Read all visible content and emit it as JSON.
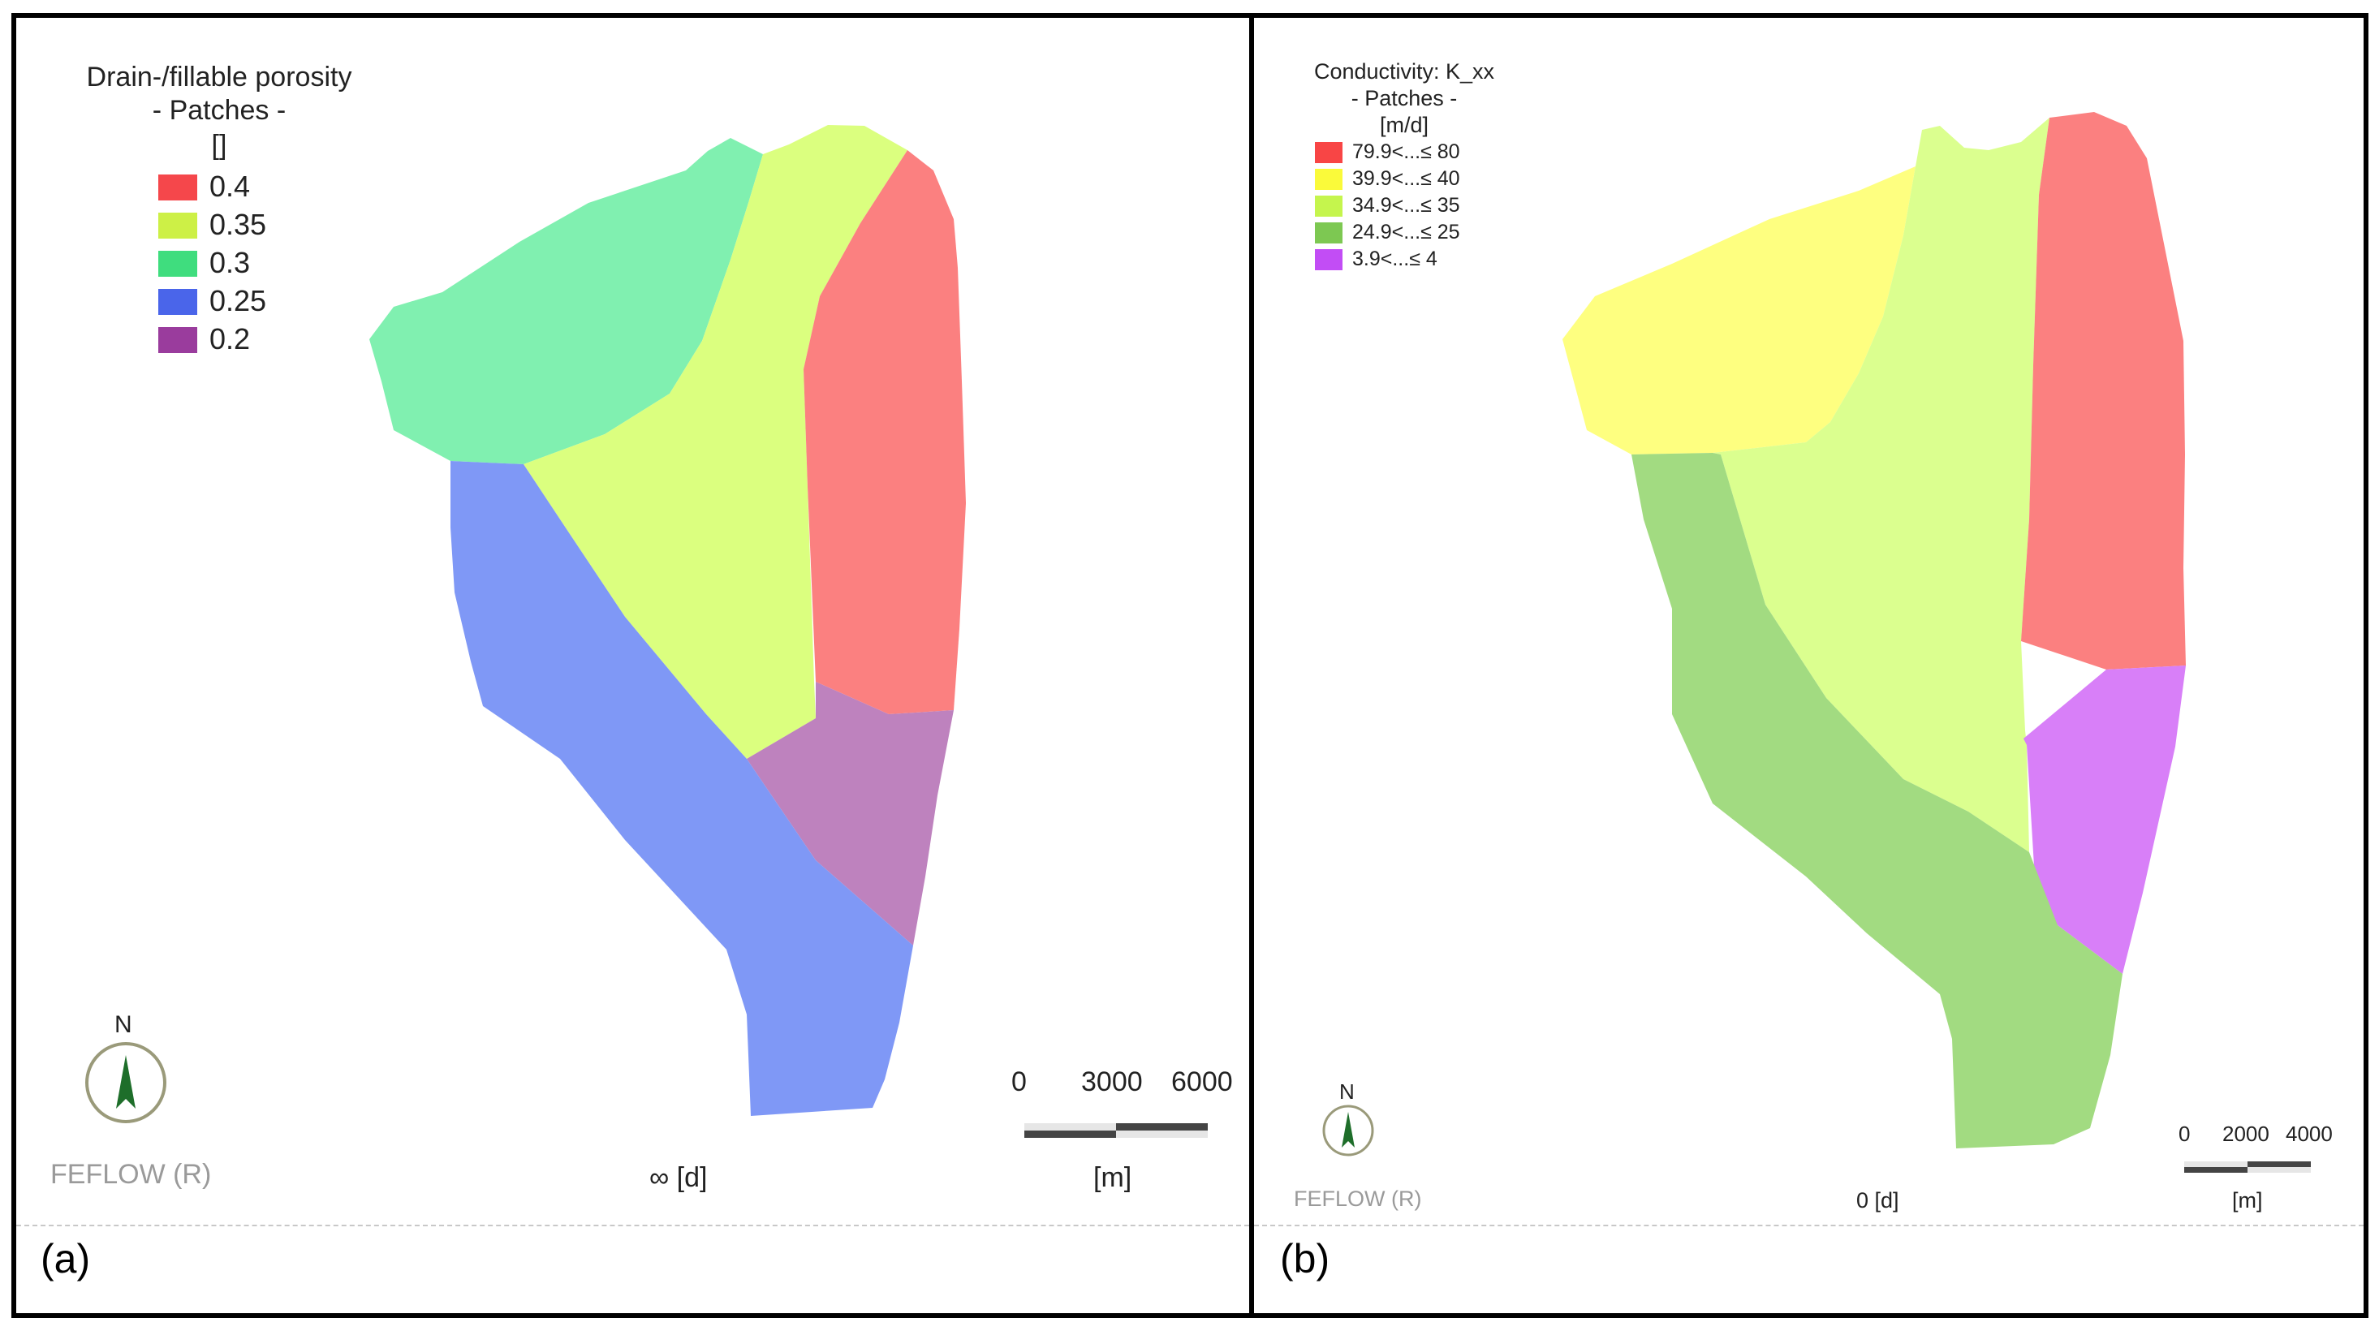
{
  "panel_a": {
    "tag": "(a)",
    "legend": {
      "title_line1": "Drain-/fillable porosity",
      "title_line2": "- Patches -",
      "unit": "[]",
      "items": [
        {
          "label": "0.4",
          "color": "#f5474b"
        },
        {
          "label": "0.35",
          "color": "#cdf046"
        },
        {
          "label": "0.3",
          "color": "#3fdd7e"
        },
        {
          "label": "0.25",
          "color": "#4a65ea"
        },
        {
          "label": "0.2",
          "color": "#9a3c9d"
        }
      ]
    },
    "north_label": "N",
    "watermark": "FEFLOW (R)",
    "time": "∞ [d]",
    "scale": {
      "ticks": [
        "0",
        "3000",
        "6000"
      ],
      "unit": "[m]"
    },
    "patch_colors": {
      "porosity_0_4": "#fb8080",
      "porosity_0_35": "#dbff7f",
      "porosity_0_3": "#80f0b0",
      "porosity_0_25": "#7f98f6",
      "porosity_0_2": "#be82be"
    }
  },
  "panel_b": {
    "tag": "(b)",
    "legend": {
      "title_line1": "Conductivity: K_xx",
      "title_line2": "- Patches -",
      "unit": "[m/d]",
      "items": [
        {
          "label": "79.9<...≤ 80",
          "color": "#f84545"
        },
        {
          "label": "39.9<...≤ 40",
          "color": "#fafa3a"
        },
        {
          "label": "34.9<...≤ 35",
          "color": "#c5f54d"
        },
        {
          "label": "24.9<...≤ 25",
          "color": "#7dc852"
        },
        {
          "label": "3.9<...≤ 4",
          "color": "#c24df5"
        }
      ]
    },
    "north_label": "N",
    "watermark": "FEFLOW (R)",
    "time": "0 [d]",
    "scale": {
      "ticks": [
        "0",
        "2000",
        "4000"
      ],
      "unit": "[m]"
    },
    "patch_colors": {
      "k_80": "#fb8080",
      "k_40": "#feff80",
      "k_35": "#dbff8f",
      "k_25": "#a2db81",
      "k_4": "#d87ff8"
    }
  }
}
